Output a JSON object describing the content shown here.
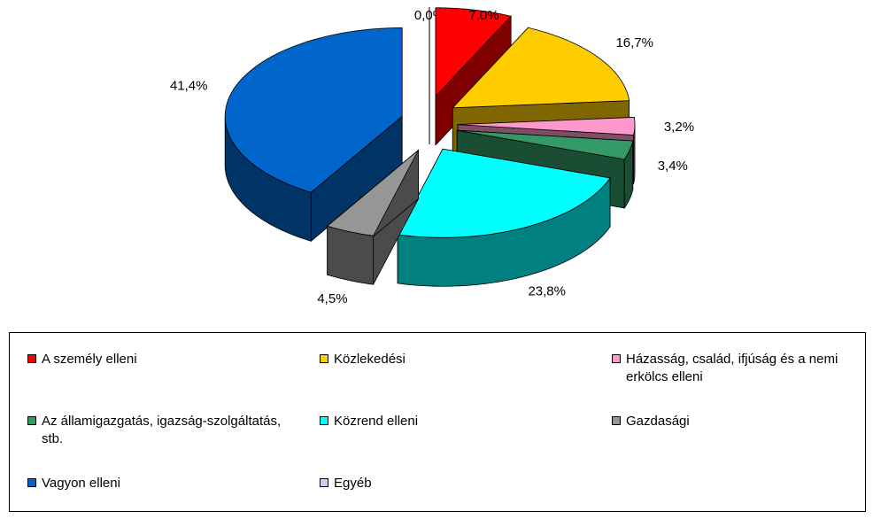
{
  "chart_data": {
    "type": "pie3d",
    "categories": [
      "A személy elleni",
      "Közlekedési",
      "Házasság, család, ifjúság és a nemi erkölcs elleni",
      "Az államigazgatás, igazság-szolgáltatás, stb.",
      "Közrend elleni",
      "Gazdasági",
      "Vagyon elleni",
      "Egyéb"
    ],
    "values": [
      7.0,
      16.7,
      3.2,
      3.4,
      23.8,
      4.5,
      41.4,
      0.0
    ],
    "value_labels": [
      "7,0%",
      "16,7%",
      "3,2%",
      "3,4%",
      "23,8%",
      "4,5%",
      "41,4%",
      "0,0%"
    ],
    "colors": [
      "#ff0000",
      "#ffcc00",
      "#ff99cc",
      "#339966",
      "#00ffff",
      "#969696",
      "#0066cc",
      "#ccccff"
    ]
  }
}
